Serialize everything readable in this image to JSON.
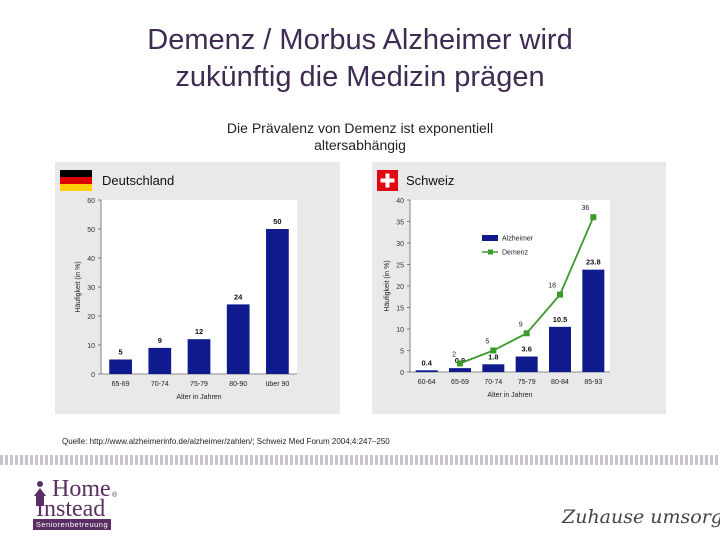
{
  "title_line1": "Demenz / Morbus Alzheimer wird",
  "title_line2": "zukünftig die Medizin prägen",
  "subtitle_line1": "Die Prävalenz von Demenz ist exponentiell",
  "subtitle_line2": "altersabhängig",
  "source": "Quelle: http://www.alzheimerinfo.de/alzheimer/zahlen/; Schweiz Med Forum 2004;4:247–250",
  "logo": {
    "home": "Home",
    "instead": "Instead",
    "reg": "®",
    "bar": "Seniorenbetreuung"
  },
  "tagline": "Zuhause umsorgt",
  "colors": {
    "bar": "#0f1a8f",
    "line": "#3a9a2a",
    "title": "#3f2a52",
    "panel": "#e9e9e9"
  },
  "chart_data": [
    {
      "type": "bar",
      "title": "Deutschland",
      "flag": "germany-flag",
      "xlabel": "Alter in Jahren",
      "ylabel": "Häufigkeit (in %)",
      "ylim": [
        0,
        60
      ],
      "yticks": [
        0,
        10,
        20,
        30,
        40,
        50,
        60
      ],
      "categories": [
        "65-69",
        "70-74",
        "75-79",
        "80-90",
        "über 90"
      ],
      "series": [
        {
          "values": [
            5,
            9,
            12,
            24,
            50
          ]
        }
      ]
    },
    {
      "type": "bar",
      "title": "Schweiz",
      "flag": "switzerland-flag",
      "xlabel": "Alter in Jahren",
      "ylabel": "Häufigkeit (in %)",
      "ylim": [
        0,
        40
      ],
      "yticks": [
        0,
        5,
        10,
        15,
        20,
        25,
        30,
        35,
        40
      ],
      "categories": [
        "60-64",
        "65-69",
        "70-74",
        "75-79",
        "80-84",
        "85-93"
      ],
      "legend_position": "top-center",
      "series": [
        {
          "name": "Alzheimer",
          "type": "bar",
          "values": [
            0.4,
            0.9,
            1.8,
            3.6,
            10.5,
            23.8
          ]
        },
        {
          "name": "Demenz",
          "type": "line",
          "values": [
            null,
            2,
            5,
            9,
            18,
            36
          ]
        }
      ]
    }
  ]
}
